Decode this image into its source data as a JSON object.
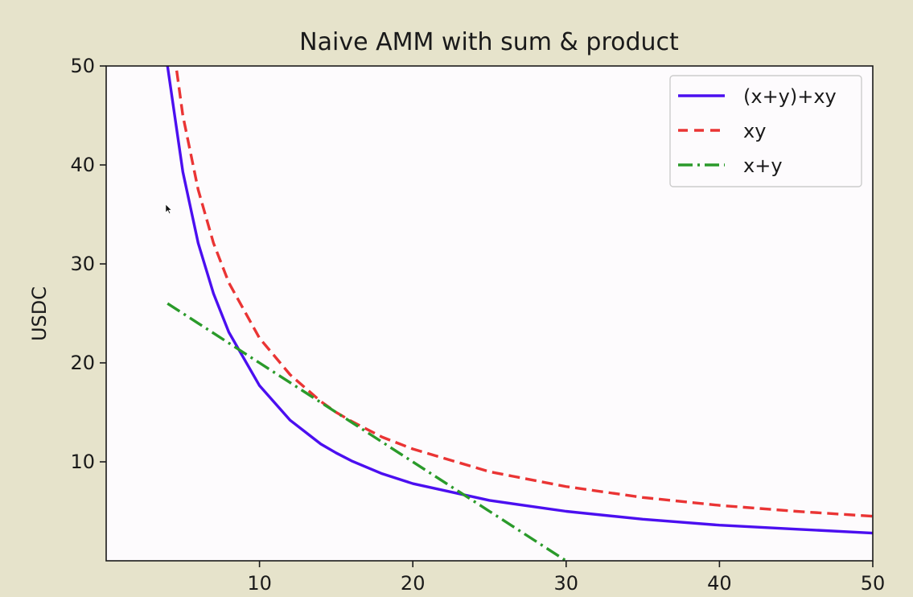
{
  "colors": {
    "window_background": "#e6e3cb",
    "plot_background": "#fdfbfd"
  },
  "chart_data": {
    "type": "line",
    "title": "Naive AMM with sum & product",
    "xlabel": "",
    "ylabel": "USDC",
    "xlim": [
      0,
      50
    ],
    "ylim": [
      0,
      50
    ],
    "xticks": [
      10,
      20,
      30,
      40,
      50
    ],
    "yticks": [
      10,
      20,
      30,
      40,
      50
    ],
    "grid": false,
    "legend_position": "top-right",
    "x": [
      4,
      5,
      6,
      7,
      8,
      10,
      12,
      14,
      15,
      16,
      18,
      20,
      25,
      30,
      35,
      40,
      45,
      50
    ],
    "series": [
      {
        "name": "(x+y)+xy",
        "color": "#4b0ff0",
        "style": "solid",
        "values": [
          50.0,
          39.3,
          32.1,
          27.0,
          23.1,
          17.7,
          14.2,
          11.8,
          10.9,
          10.1,
          8.8,
          7.8,
          6.1,
          5.0,
          4.2,
          3.6,
          3.2,
          2.8
        ]
      },
      {
        "name": "xy",
        "color": "#ea3434",
        "style": "dashed",
        "values": [
          56.3,
          45.0,
          37.5,
          32.1,
          28.1,
          22.5,
          18.8,
          16.1,
          15.0,
          14.1,
          12.5,
          11.3,
          9.0,
          7.5,
          6.4,
          5.6,
          5.0,
          4.5
        ]
      },
      {
        "name": "x+y",
        "color": "#2a9a2a",
        "style": "dashdot",
        "values": [
          26.0,
          25.0,
          24.0,
          23.0,
          22.0,
          20.0,
          18.0,
          16.0,
          15.0,
          14.0,
          12.0,
          10.0,
          5.0,
          0.0,
          null,
          null,
          null,
          null
        ]
      }
    ]
  }
}
